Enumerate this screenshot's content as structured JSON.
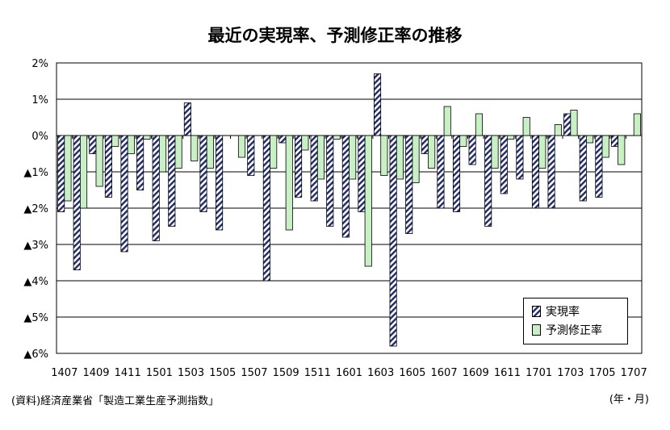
{
  "chart_data": {
    "type": "bar",
    "title": "最近の実現率、予測修正率の推移",
    "xlabel": "",
    "ylabel": "",
    "ylim": [
      -6,
      2
    ],
    "y_ticks": [
      {
        "value": 2,
        "label": "2%"
      },
      {
        "value": 1,
        "label": "1%"
      },
      {
        "value": 0,
        "label": "0%"
      },
      {
        "value": -1,
        "label": "▲1%"
      },
      {
        "value": -2,
        "label": "▲2%"
      },
      {
        "value": -3,
        "label": "▲3%"
      },
      {
        "value": -4,
        "label": "▲4%"
      },
      {
        "value": -5,
        "label": "▲5%"
      },
      {
        "value": -6,
        "label": "▲6%"
      }
    ],
    "categories": [
      "1407",
      "1408",
      "1409",
      "1410",
      "1411",
      "1412",
      "1501",
      "1502",
      "1503",
      "1504",
      "1505",
      "1506",
      "1507",
      "1508",
      "1509",
      "1510",
      "1511",
      "1512",
      "1601",
      "1602",
      "1603",
      "1604",
      "1605",
      "1606",
      "1607",
      "1608",
      "1609",
      "1610",
      "1611",
      "1612",
      "1701",
      "1702",
      "1703",
      "1704",
      "1705",
      "1706",
      "1707"
    ],
    "x_tick_labels": [
      "1407",
      "1409",
      "1411",
      "1501",
      "1503",
      "1505",
      "1507",
      "1509",
      "1511",
      "1601",
      "1603",
      "1605",
      "1607",
      "1609",
      "1611",
      "1701",
      "1703",
      "1705",
      "1707"
    ],
    "series": [
      {
        "name": "実現率",
        "pattern": "hatch",
        "color": "#1f2a6b",
        "values": [
          -2.1,
          -3.7,
          -0.5,
          -1.7,
          -3.2,
          -1.5,
          -2.9,
          -2.5,
          0.9,
          -2.1,
          -2.6,
          null,
          -1.1,
          -4.0,
          -0.2,
          -1.7,
          -1.8,
          -2.5,
          -2.8,
          -2.1,
          1.7,
          -5.8,
          -2.7,
          -0.5,
          -2.0,
          -2.1,
          -0.8,
          -2.5,
          -1.6,
          -1.2,
          -2.0,
          -2.0,
          0.6,
          -1.8,
          -1.7,
          -0.3,
          null
        ]
      },
      {
        "name": "予測修正率",
        "pattern": "solid",
        "color": "#c9f0c5",
        "values": [
          -1.8,
          -2.0,
          -1.4,
          -0.3,
          -0.5,
          -0.1,
          -1.0,
          -0.9,
          -0.7,
          -0.9,
          null,
          -0.6,
          null,
          -0.9,
          -2.6,
          -0.4,
          -1.2,
          -0.1,
          -1.2,
          -3.6,
          -1.1,
          -1.2,
          -1.3,
          -0.9,
          0.8,
          -0.3,
          0.6,
          -0.9,
          -0.1,
          0.5,
          -0.9,
          0.3,
          0.7,
          -0.2,
          -0.6,
          -0.8,
          0.6
        ]
      }
    ],
    "grid": true,
    "legend_position": "bottom-right"
  },
  "source_note": "(資料)経済産業省「製造工業生産予測指数」",
  "unit_note": "(年・月)",
  "legend": {
    "series1_label": "実現率",
    "series2_label": "予測修正率"
  }
}
